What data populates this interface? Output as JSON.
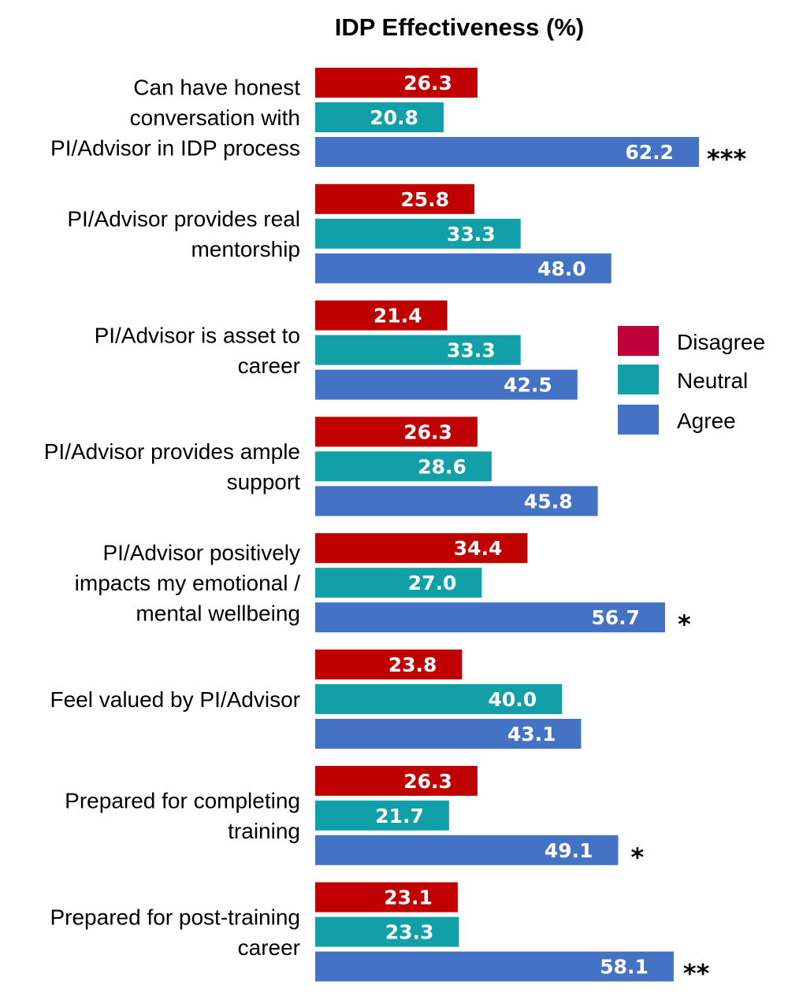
{
  "chart_data": {
    "type": "bar",
    "orientation": "horizontal",
    "title": "IDP Effectiveness (%)",
    "xlabel": "",
    "ylabel": "",
    "xlim": [
      0,
      100
    ],
    "grid": false,
    "legend_position": "right",
    "categories": [
      {
        "lines": [
          "Can have honest",
          "conversation with",
          "PI/Advisor in IDP process"
        ],
        "significance": "***"
      },
      {
        "lines": [
          "PI/Advisor provides real",
          "mentorship"
        ],
        "significance": ""
      },
      {
        "lines": [
          "PI/Advisor is asset to",
          "career"
        ],
        "significance": ""
      },
      {
        "lines": [
          "PI/Advisor provides ample",
          "support"
        ],
        "significance": ""
      },
      {
        "lines": [
          "PI/Advisor positively",
          "impacts my emotional /",
          "mental wellbeing"
        ],
        "significance": "*"
      },
      {
        "lines": [
          "Feel valued by PI/Advisor"
        ],
        "significance": ""
      },
      {
        "lines": [
          "Prepared for completing",
          "training"
        ],
        "significance": "*"
      },
      {
        "lines": [
          "Prepared for post-training",
          "career"
        ],
        "significance": "**"
      }
    ],
    "series": [
      {
        "name": "Disagree",
        "color": "#c00000",
        "legend_color": "#c0003a",
        "values": [
          "26.3",
          "25.8",
          "21.4",
          "26.3",
          "34.4",
          "23.8",
          "26.3",
          "23.1"
        ]
      },
      {
        "name": "Neutral",
        "color": "#12a0a8",
        "values": [
          "20.8",
          "33.3",
          "33.3",
          "28.6",
          "27.0",
          "40.0",
          "21.7",
          "23.3"
        ]
      },
      {
        "name": "Agree",
        "color": "#4472c4",
        "values": [
          "62.2",
          "48.0",
          "42.5",
          "45.8",
          "56.7",
          "43.1",
          "49.1",
          "58.1"
        ]
      }
    ]
  }
}
